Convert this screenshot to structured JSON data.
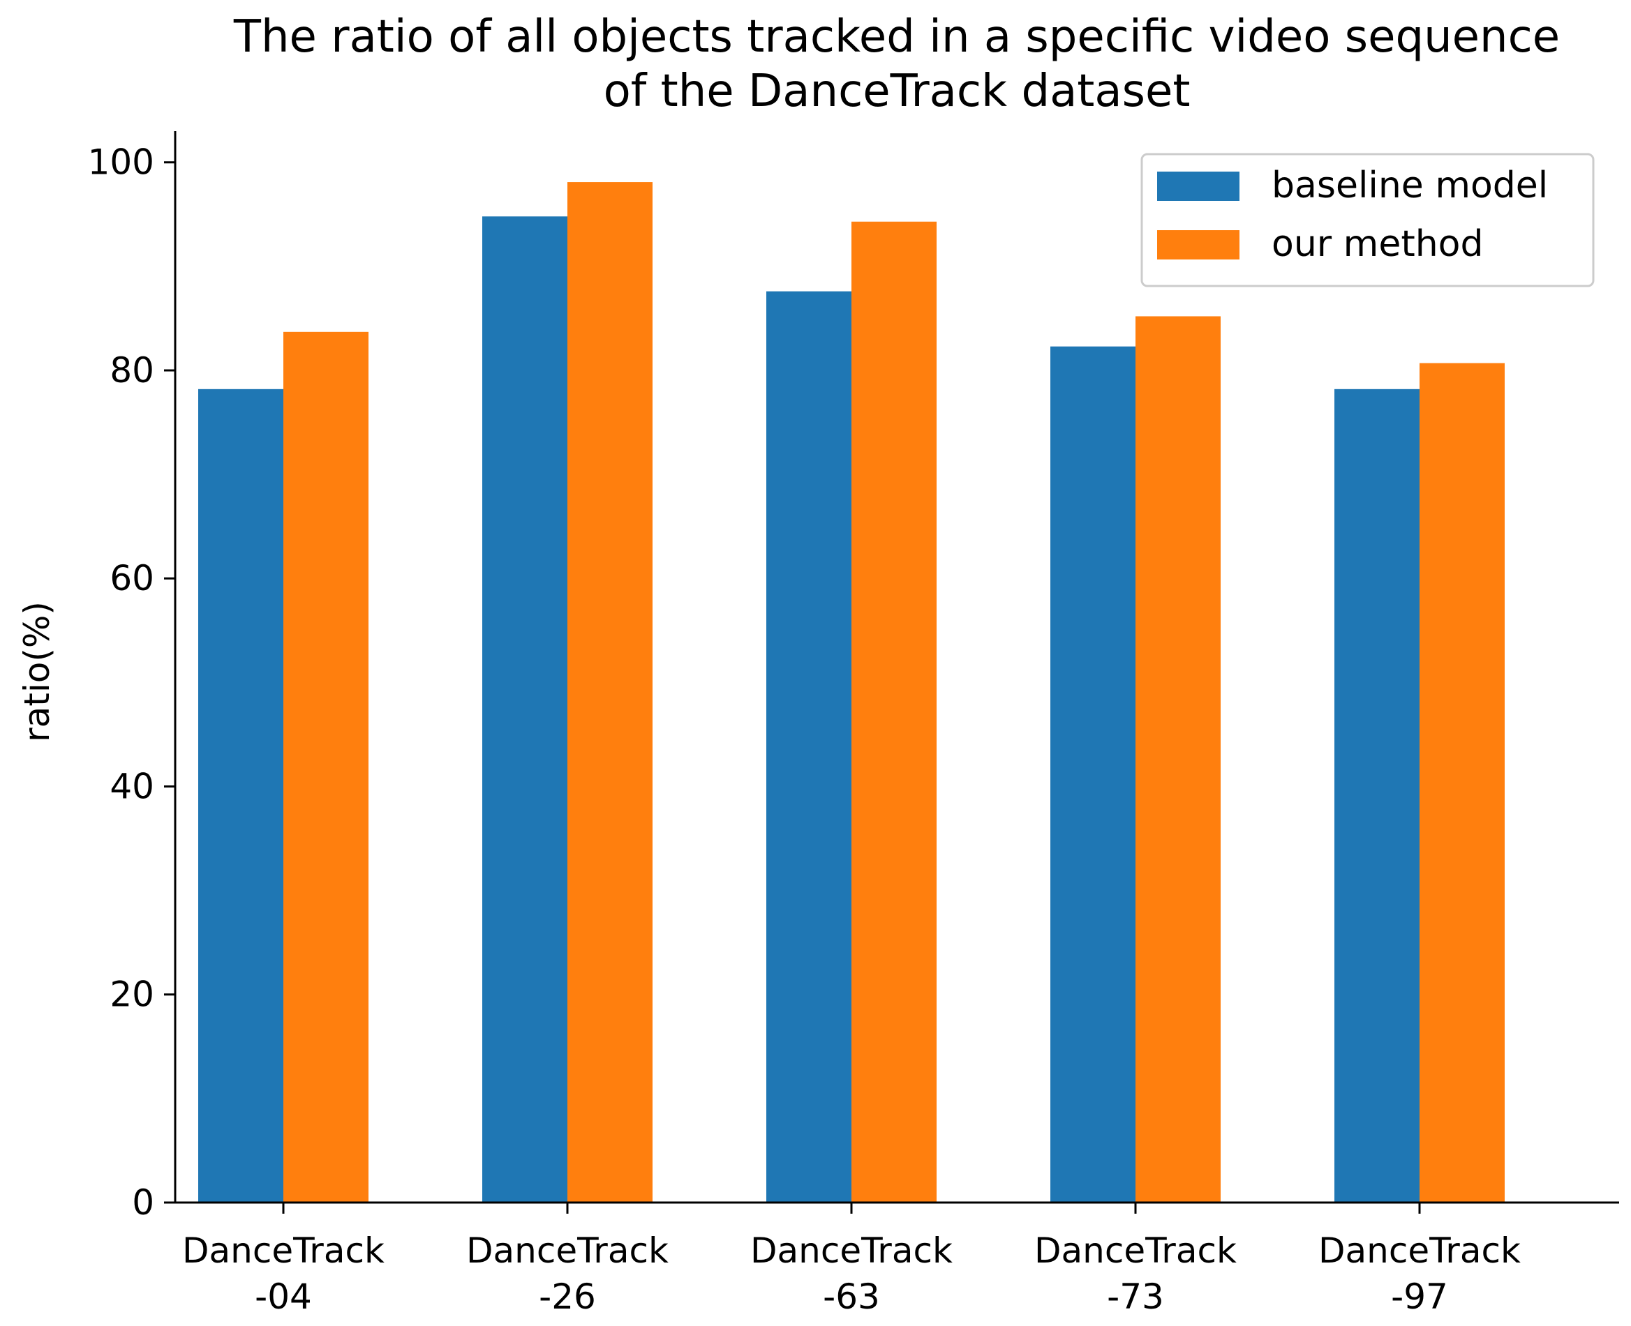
{
  "chart_data": {
    "type": "bar",
    "title_lines": [
      "The ratio of all objects tracked in a specific video sequence",
      "of the DanceTrack dataset"
    ],
    "xlabel": "",
    "ylabel": "ratio(%)",
    "ylim": [
      0,
      103
    ],
    "yticks": [
      0,
      20,
      40,
      60,
      80,
      100
    ],
    "categories": [
      [
        "DanceTrack",
        "-04"
      ],
      [
        "DanceTrack",
        "-26"
      ],
      [
        "DanceTrack",
        "-63"
      ],
      [
        "DanceTrack",
        "-73"
      ],
      [
        "DanceTrack",
        "-97"
      ]
    ],
    "series": [
      {
        "name": "baseline model",
        "color": "#1f77b4",
        "values": [
          78.2,
          94.8,
          87.6,
          82.3,
          78.2
        ]
      },
      {
        "name": "our method",
        "color": "#ff7f0e",
        "values": [
          83.7,
          98.1,
          94.3,
          85.2,
          80.7
        ]
      }
    ],
    "legend_position": "top-right",
    "grid": false,
    "spines": "left-bottom"
  }
}
